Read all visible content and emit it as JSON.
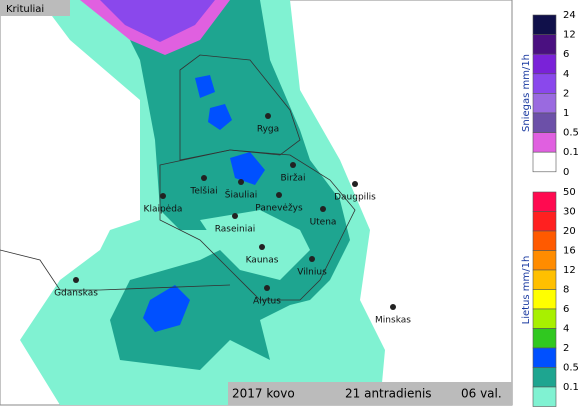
{
  "header": {
    "title": "Krituliai"
  },
  "cities": [
    "Ryga",
    "Biržai",
    "Telšiai",
    "Šiauliai",
    "Daugpilis",
    "Klaipėda",
    "Panevėžys",
    "Utena",
    "Raseiniai",
    "Kaunas",
    "Vilnius",
    "Gdanskas",
    "Alytus",
    "Minskas"
  ],
  "snow_legend": {
    "title": "Sniegas mm/1h",
    "labels": [
      "24",
      "12",
      "6",
      "4",
      "2",
      "1",
      "0.5",
      "0.1",
      "0"
    ],
    "colors": [
      "#10104a",
      "#4a1080",
      "#7a22d8",
      "#8a48ec",
      "#9a6ae0",
      "#6c50a8",
      "#e060e0",
      "#ffffff"
    ]
  },
  "rain_legend": {
    "title": "Lietus mm/1h",
    "labels": [
      "50",
      "30",
      "20",
      "16",
      "12",
      "8",
      "6",
      "4",
      "2",
      "0.5",
      "0.1"
    ],
    "colors": [
      "#ff0a50",
      "#ff2020",
      "#ff5a00",
      "#ff8c00",
      "#ffc000",
      "#ffff00",
      "#a8f000",
      "#30c820",
      "#0050ff",
      "#1ea590",
      "#80f2d2"
    ]
  },
  "footer": {
    "month": "2017 kovo",
    "day": "21 antradienis",
    "hour": "06 val."
  }
}
